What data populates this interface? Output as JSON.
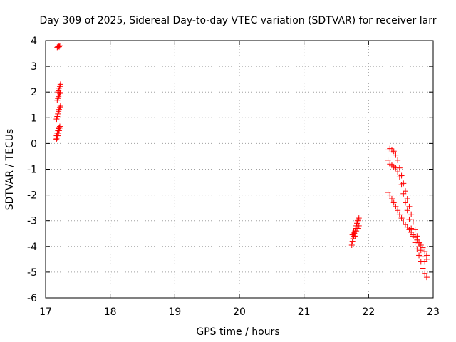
{
  "chart_data": {
    "type": "scatter",
    "title": "Day 309 of 2025, Sidereal Day-to-day VTEC variation (SDTVAR) for receiver larr",
    "xlabel": "GPS time / hours",
    "ylabel": "SDTVAR / TECUs",
    "xlim": [
      17,
      23
    ],
    "ylim": [
      -6,
      4
    ],
    "xticks": [
      "17",
      "18",
      "19",
      "20",
      "21",
      "22",
      "23"
    ],
    "yticks": [
      "4",
      "3",
      "2",
      "1",
      "0",
      "-1",
      "-2",
      "-3",
      "-4",
      "-5",
      "-6"
    ],
    "grid": true,
    "marker": "plus",
    "color": "#ff0000",
    "series": [
      {
        "x": [
          17.18,
          17.19,
          17.2,
          17.21,
          17.22,
          17.19,
          17.2,
          17.21,
          17.22,
          17.23,
          17.18,
          17.19,
          17.2,
          17.21,
          17.22,
          17.23,
          17.17,
          17.18,
          17.19,
          17.2,
          17.21,
          17.22,
          17.23,
          17.17,
          17.18,
          17.19,
          17.2,
          17.21,
          17.22,
          17.16,
          17.17,
          17.18,
          17.19,
          17.2,
          17.21,
          17.22
        ],
        "y": [
          3.74,
          3.76,
          3.78,
          3.76,
          3.8,
          2.0,
          2.05,
          2.15,
          2.22,
          2.3,
          1.68,
          1.75,
          1.82,
          1.88,
          1.95,
          1.98,
          0.95,
          1.05,
          1.15,
          1.25,
          1.32,
          1.4,
          1.45,
          0.3,
          0.4,
          0.5,
          0.58,
          0.62,
          0.66,
          0.15,
          0.18,
          0.22,
          0.3,
          0.4,
          0.5,
          0.6
        ]
      },
      {
        "x": [
          21.74,
          21.75,
          21.76,
          21.77,
          21.78,
          21.79,
          21.8,
          21.81,
          21.82,
          21.83,
          21.84,
          21.85,
          21.75,
          21.77,
          21.79,
          21.81,
          21.83,
          21.85
        ],
        "y": [
          -3.95,
          -3.8,
          -3.7,
          -3.6,
          -3.5,
          -3.4,
          -3.3,
          -3.2,
          -3.1,
          -3.0,
          -2.95,
          -2.9,
          -3.55,
          -3.45,
          -3.6,
          -3.4,
          -3.3,
          -3.2
        ]
      },
      {
        "x": [
          22.3,
          22.33,
          22.36,
          22.39,
          22.42,
          22.45,
          22.48,
          22.51,
          22.54,
          22.57,
          22.6,
          22.63,
          22.66,
          22.69,
          22.72,
          22.75,
          22.78,
          22.81,
          22.84,
          22.87,
          22.9
        ],
        "y": [
          -0.25,
          -0.2,
          -0.25,
          -0.3,
          -0.45,
          -0.65,
          -0.95,
          -1.25,
          -1.55,
          -1.85,
          -2.15,
          -2.45,
          -2.75,
          -3.05,
          -3.35,
          -3.6,
          -3.9,
          -4.15,
          -4.4,
          -4.6,
          -4.5
        ]
      },
      {
        "x": [
          22.3,
          22.33,
          22.36,
          22.39,
          22.42,
          22.45,
          22.48,
          22.51,
          22.54,
          22.57,
          22.6,
          22.63,
          22.66,
          22.69,
          22.72,
          22.75,
          22.78,
          22.81,
          22.84,
          22.87,
          22.9
        ],
        "y": [
          -0.65,
          -0.8,
          -0.85,
          -0.9,
          -0.95,
          -1.1,
          -1.3,
          -1.6,
          -1.95,
          -2.3,
          -2.6,
          -2.95,
          -3.3,
          -3.6,
          -3.85,
          -4.1,
          -4.35,
          -4.6,
          -4.85,
          -5.05,
          -5.2
        ]
      },
      {
        "x": [
          22.3,
          22.33,
          22.36,
          22.39,
          22.42,
          22.45,
          22.48,
          22.51,
          22.54,
          22.57,
          22.6,
          22.63,
          22.66,
          22.69,
          22.72,
          22.75,
          22.78,
          22.81,
          22.84,
          22.87,
          22.9
        ],
        "y": [
          -1.9,
          -2.0,
          -2.15,
          -2.3,
          -2.45,
          -2.6,
          -2.75,
          -2.9,
          -3.05,
          -3.15,
          -3.25,
          -3.35,
          -3.45,
          -3.55,
          -3.65,
          -3.75,
          -3.85,
          -3.95,
          -4.05,
          -4.2,
          -4.35
        ]
      }
    ]
  }
}
